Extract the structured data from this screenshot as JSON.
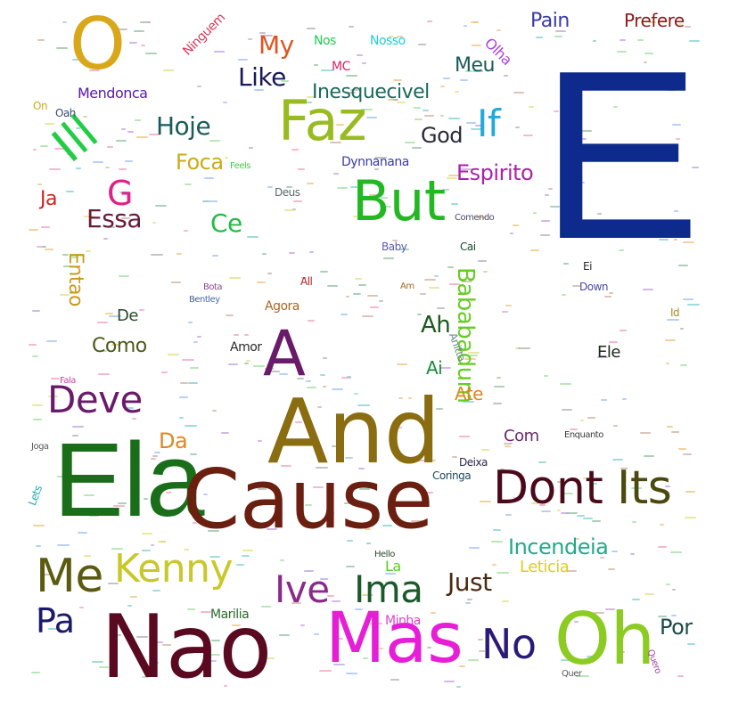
{
  "words": [
    {
      "text": "E",
      "color": "#0d2a8c"
    },
    {
      "text": "Ela",
      "color": "#1a6e1a"
    },
    {
      "text": "Cause",
      "color": "#6b1f10"
    },
    {
      "text": "And",
      "color": "#8a6d10"
    },
    {
      "text": "Nao",
      "color": "#5a0a20"
    },
    {
      "text": "Mas",
      "color": "#e61ed6"
    },
    {
      "text": "Oh",
      "color": "#8ccc22"
    },
    {
      "text": "O",
      "color": "#d9a81a"
    },
    {
      "text": "But",
      "color": "#22b822"
    },
    {
      "text": "Faz",
      "color": "#99bb22"
    },
    {
      "text": "A",
      "color": "#6a1a6a"
    },
    {
      "text": "Dont",
      "color": "#4a0a1a"
    },
    {
      "text": "Its",
      "color": "#4a4a10"
    },
    {
      "text": "Kenny",
      "color": "#c8c82a"
    },
    {
      "text": "Me",
      "color": "#5a5a10"
    },
    {
      "text": "Deve",
      "color": "#6a1a6a"
    },
    {
      "text": "Ive",
      "color": "#8a2a8a"
    },
    {
      "text": "Ima",
      "color": "#1a5a2a"
    },
    {
      "text": "No",
      "color": "#2a1a7a"
    },
    {
      "text": "Pa",
      "color": "#1a1a6a"
    },
    {
      "text": "Ill",
      "color": "#22cc44"
    },
    {
      "text": "If",
      "color": "#22aadd"
    },
    {
      "text": "G",
      "color": "#dd2288"
    },
    {
      "text": "Bababadum",
      "color": "#66cc22"
    },
    {
      "text": "Entao",
      "color": "#c89a1a"
    },
    {
      "text": "Hoje",
      "color": "#1a5a5a"
    },
    {
      "text": "Like",
      "color": "#1a1a5a"
    },
    {
      "text": "My",
      "color": "#dd5522"
    },
    {
      "text": "Essa",
      "color": "#6a1a3a"
    },
    {
      "text": "Ce",
      "color": "#22bb44"
    },
    {
      "text": "Just",
      "color": "#4a2a10"
    },
    {
      "text": "Incendeia",
      "color": "#22aa88"
    },
    {
      "text": "Ah",
      "color": "#1a5a1a"
    },
    {
      "text": "Espirito",
      "color": "#aa22aa"
    },
    {
      "text": "Inesquecivel",
      "color": "#1a6a5a"
    },
    {
      "text": "Meu",
      "color": "#1a5a5a"
    },
    {
      "text": "God",
      "color": "#2a2a3a"
    },
    {
      "text": "Foca",
      "color": "#ccaa1a"
    },
    {
      "text": "Como",
      "color": "#4a5a1a"
    },
    {
      "text": "Por",
      "color": "#1a4a4a"
    },
    {
      "text": "Da",
      "color": "#dd8822"
    },
    {
      "text": "Ja",
      "color": "#cc2222"
    },
    {
      "text": "Pain",
      "color": "#3a3aaa"
    },
    {
      "text": "Prefere",
      "color": "#8a1a1a"
    },
    {
      "text": "Mendonca",
      "color": "#5a1aaa"
    },
    {
      "text": "Ate",
      "color": "#dd8822"
    },
    {
      "text": "Ai",
      "color": "#1a8a3a"
    },
    {
      "text": "Com",
      "color": "#6a2a6a"
    },
    {
      "text": "Leticia",
      "color": "#ddcc22"
    },
    {
      "text": "La",
      "color": "#5acc22"
    },
    {
      "text": "Ele",
      "color": "#1a2a1a"
    },
    {
      "text": "Ninguem",
      "color": "#dd3355"
    },
    {
      "text": "Olha",
      "color": "#aa44dd"
    },
    {
      "text": "Nos",
      "color": "#22cc55"
    },
    {
      "text": "Nosso",
      "color": "#22ccdd"
    },
    {
      "text": "MC",
      "color": "#dd2266"
    },
    {
      "text": "Dynnanana",
      "color": "#3a3aaa"
    },
    {
      "text": "Marilia",
      "color": "#2a6a2a"
    },
    {
      "text": "Minha",
      "color": "#dd44cc"
    },
    {
      "text": "Agora",
      "color": "#aa6622"
    },
    {
      "text": "Amor",
      "color": "#2a2a2a"
    },
    {
      "text": "Deus",
      "color": "#5a6a6a"
    },
    {
      "text": "Oah",
      "color": "#3a4a7a"
    },
    {
      "text": "On",
      "color": "#ccaa1a"
    },
    {
      "text": "De",
      "color": "#2a4a2a"
    },
    {
      "text": "Cai",
      "color": "#1a4a2a"
    },
    {
      "text": "Baby",
      "color": "#5a5aaa"
    },
    {
      "text": "Anitta",
      "color": "#6a8a8a"
    },
    {
      "text": "Coringa",
      "color": "#1a4a5a"
    },
    {
      "text": "Deixa",
      "color": "#2a2a4a"
    },
    {
      "text": "Down",
      "color": "#4a4aaa"
    },
    {
      "text": "Ei",
      "color": "#2a2a2a"
    },
    {
      "text": "Id",
      "color": "#aa8a22"
    },
    {
      "text": "Hello",
      "color": "#2a4a2a"
    },
    {
      "text": "Bota",
      "color": "#8a4a8a"
    },
    {
      "text": "Bentley",
      "color": "#4a6aaa"
    },
    {
      "text": "All",
      "color": "#aa2222"
    },
    {
      "text": "Am",
      "color": "#aa6622"
    },
    {
      "text": "Comendo",
      "color": "#4a4a6a"
    },
    {
      "text": "Lets",
      "color": "#22aaaa"
    },
    {
      "text": "Quer",
      "color": "#5a5a5a"
    },
    {
      "text": "Quero",
      "color": "#aa44aa"
    },
    {
      "text": "Enquanto",
      "color": "#3a3a3a"
    },
    {
      "text": "Joga",
      "color": "#5a5a5a"
    },
    {
      "text": "Fala",
      "color": "#cc44aa"
    },
    {
      "text": "Feels",
      "color": "#44cc44"
    }
  ],
  "palette": [
    "#f0a0c0",
    "#a0c0f0",
    "#a0e0a0",
    "#f0c080",
    "#c0a0e0",
    "#80d0d0",
    "#e0e080",
    "#d0b0a0",
    "#b0b0b0",
    "#90c0a0"
  ]
}
